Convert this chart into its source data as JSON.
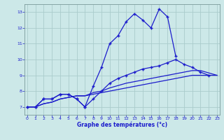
{
  "xlabel": "Graphe des températures (°c)",
  "x": [
    0,
    1,
    2,
    3,
    4,
    5,
    6,
    7,
    8,
    9,
    10,
    11,
    12,
    13,
    14,
    15,
    16,
    17,
    18,
    19,
    20,
    21,
    22,
    23
  ],
  "line1_marked": [
    7.0,
    7.0,
    7.5,
    7.5,
    7.8,
    7.8,
    7.5,
    7.0,
    8.3,
    9.5,
    11.0,
    11.5,
    12.4,
    12.9,
    12.5,
    12.0,
    13.2,
    12.7,
    10.2,
    null,
    null,
    null,
    null,
    null
  ],
  "line2_marked": [
    7.0,
    7.0,
    7.5,
    7.5,
    7.8,
    7.8,
    7.5,
    7.0,
    7.5,
    8.0,
    8.5,
    8.8,
    9.0,
    9.2,
    9.4,
    9.5,
    9.6,
    9.8,
    10.0,
    9.7,
    9.5,
    9.2,
    9.0,
    null
  ],
  "line3_plain": [
    7.0,
    7.0,
    7.2,
    7.3,
    7.5,
    7.6,
    7.7,
    7.7,
    7.8,
    7.9,
    8.0,
    8.1,
    8.2,
    8.3,
    8.4,
    8.5,
    8.6,
    8.7,
    8.8,
    8.9,
    9.0,
    9.0,
    9.0,
    9.0
  ],
  "line4_plain": [
    7.0,
    7.0,
    7.2,
    7.3,
    7.5,
    7.6,
    7.7,
    7.7,
    7.9,
    8.0,
    8.2,
    8.35,
    8.5,
    8.6,
    8.7,
    8.8,
    8.9,
    9.0,
    9.1,
    9.2,
    9.3,
    9.3,
    9.15,
    9.0
  ],
  "line_color": "#1c1ccc",
  "bg_color": "#cce8e8",
  "grid_color": "#aacccc",
  "ylim": [
    6.5,
    13.5
  ],
  "xlim": [
    -0.3,
    23.3
  ],
  "yticks": [
    7,
    8,
    9,
    10,
    11,
    12,
    13
  ],
  "xticks": [
    0,
    1,
    2,
    3,
    4,
    5,
    6,
    7,
    8,
    9,
    10,
    11,
    12,
    13,
    14,
    15,
    16,
    17,
    18,
    19,
    20,
    21,
    22,
    23
  ]
}
